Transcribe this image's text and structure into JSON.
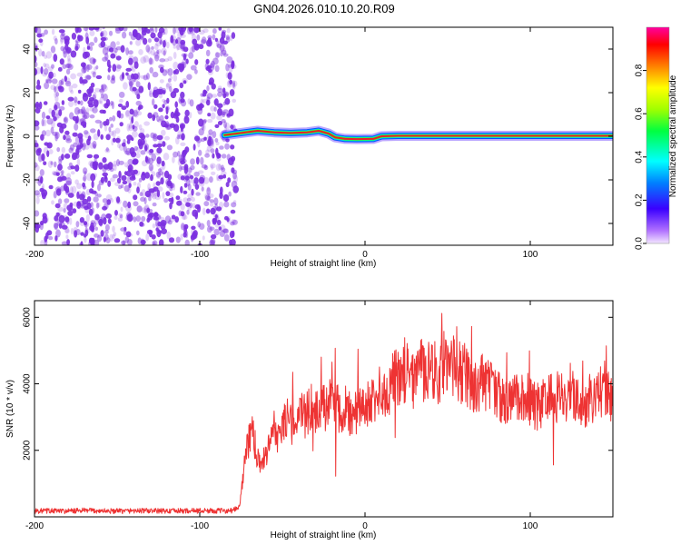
{
  "title": "GN04.2026.010.10.20.R09",
  "colors": {
    "snr_line": "#ee3333",
    "spectrogram_noise": "#7b2fe0",
    "ridge_center": "#e8202a",
    "background": "#ffffff",
    "frame": "#000000"
  },
  "colorbar": {
    "label": "Normalized spectral amplitude",
    "ticks": [
      "0.0",
      "0.2",
      "0.4",
      "0.6",
      "0.8"
    ],
    "range": [
      0.0,
      1.0
    ],
    "colormap": "rainbow (purple-blue-cyan-green-yellow-red-magenta)"
  },
  "chart_data": [
    {
      "type": "heatmap",
      "title": "GN04.2026.010.10.20.R09",
      "xlabel": "Height of straight line (km)",
      "ylabel": "Frequency (Hz)",
      "xlim": [
        -200,
        150
      ],
      "ylim": [
        -50,
        50
      ],
      "x_ticks": [
        "-200",
        "-100",
        "0",
        "100"
      ],
      "y_ticks": [
        "-40",
        "-20",
        "0",
        "20",
        "40"
      ],
      "description": "Broadband low-amplitude noise for x < -80 km; narrow high-amplitude ridge near 0 Hz for x >= -85 km",
      "noise_region_x": [
        -200,
        -78
      ],
      "ridge_frequency": {
        "x": [
          -85,
          -75,
          -65,
          -55,
          -45,
          -35,
          -28,
          -22,
          -18,
          -12,
          -5,
          5,
          10,
          20,
          40,
          60,
          80,
          100,
          120,
          150
        ],
        "y": [
          0.5,
          1.5,
          2.5,
          1.8,
          1.5,
          1.8,
          2.5,
          1.2,
          -0.5,
          -1.2,
          -1.3,
          -1.2,
          0,
          0.2,
          0.2,
          0.2,
          0.2,
          0.2,
          0.2,
          0.2
        ]
      }
    },
    {
      "type": "line",
      "title": "",
      "xlabel": "Height of straight line (km)",
      "ylabel": "SNR (10 * v/v)",
      "xlim": [
        -200,
        150
      ],
      "ylim": [
        0,
        6500
      ],
      "x_ticks": [
        "-200",
        "-100",
        "0",
        "100"
      ],
      "y_ticks": [
        "2000",
        "4000",
        "6000"
      ],
      "series": [
        {
          "x": [
            -200,
            -190,
            -180,
            -170,
            -160,
            -150,
            -140,
            -130,
            -120,
            -110,
            -100,
            -90,
            -80,
            -76,
            -72,
            -68,
            -64,
            -60,
            -56,
            -52,
            -48,
            -44,
            -40,
            -36,
            -32,
            -28,
            -24,
            -20,
            -16,
            -12,
            -8,
            -4,
            0,
            4,
            8,
            12,
            16,
            20,
            24,
            28,
            32,
            36,
            40,
            44,
            48,
            52,
            56,
            60,
            64,
            68,
            72,
            76,
            80,
            84,
            88,
            92,
            96,
            100,
            104,
            108,
            112,
            116,
            120,
            124,
            128,
            132,
            136,
            140,
            144,
            148,
            150
          ],
          "y": [
            180,
            180,
            170,
            190,
            180,
            170,
            185,
            180,
            175,
            180,
            185,
            180,
            190,
            300,
            2000,
            2600,
            1500,
            1800,
            2700,
            2400,
            3000,
            2800,
            3200,
            3000,
            3400,
            3100,
            3300,
            3500,
            3200,
            3300,
            3000,
            3100,
            3300,
            3500,
            3700,
            3600,
            4100,
            4300,
            4400,
            4100,
            4200,
            4500,
            4600,
            4300,
            4700,
            4500,
            4400,
            4300,
            4000,
            3900,
            4100,
            3900,
            3800,
            3500,
            3400,
            3600,
            3700,
            3500,
            3300,
            3400,
            3600,
            3600,
            3500,
            3900,
            3400,
            3200,
            3500,
            3600,
            3800,
            3500,
            3400
          ]
        }
      ]
    }
  ]
}
